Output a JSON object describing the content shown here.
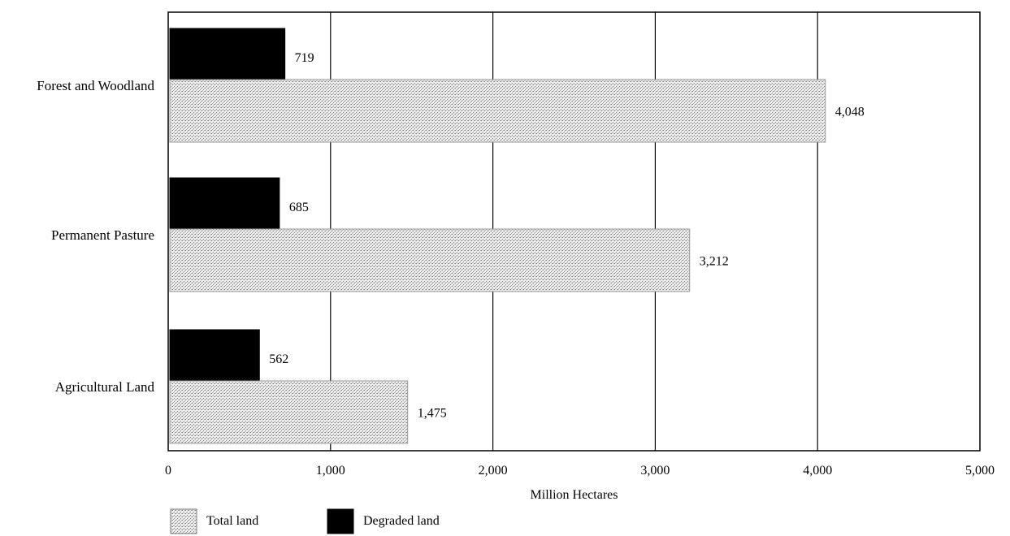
{
  "chart_data": {
    "type": "bar",
    "orientation": "horizontal",
    "title": "",
    "xlabel": "Million Hectares",
    "ylabel": "",
    "xlim": [
      0,
      5000
    ],
    "x_ticks": [
      0,
      1000,
      2000,
      3000,
      4000,
      5000
    ],
    "x_tick_labels": [
      "0",
      "1,000",
      "2,000",
      "3,000",
      "4,000",
      "5,000"
    ],
    "grid": "vertical",
    "legend_placement": "bottom-left",
    "categories": [
      "Forest and Woodland",
      "Permanent Pasture",
      "Agricultural Land"
    ],
    "series": [
      {
        "name": "Degraded land",
        "values": [
          719,
          685,
          562
        ],
        "value_labels": [
          "719",
          "685",
          "562"
        ],
        "color": "#000000",
        "fill": "solid"
      },
      {
        "name": "Total land",
        "values": [
          4048,
          3212,
          1475
        ],
        "value_labels": [
          "4,048",
          "3,212",
          "1,475"
        ],
        "color": "#d9d9d9",
        "fill": "stippled"
      }
    ],
    "legend_order": [
      "Total land",
      "Degraded land"
    ]
  }
}
